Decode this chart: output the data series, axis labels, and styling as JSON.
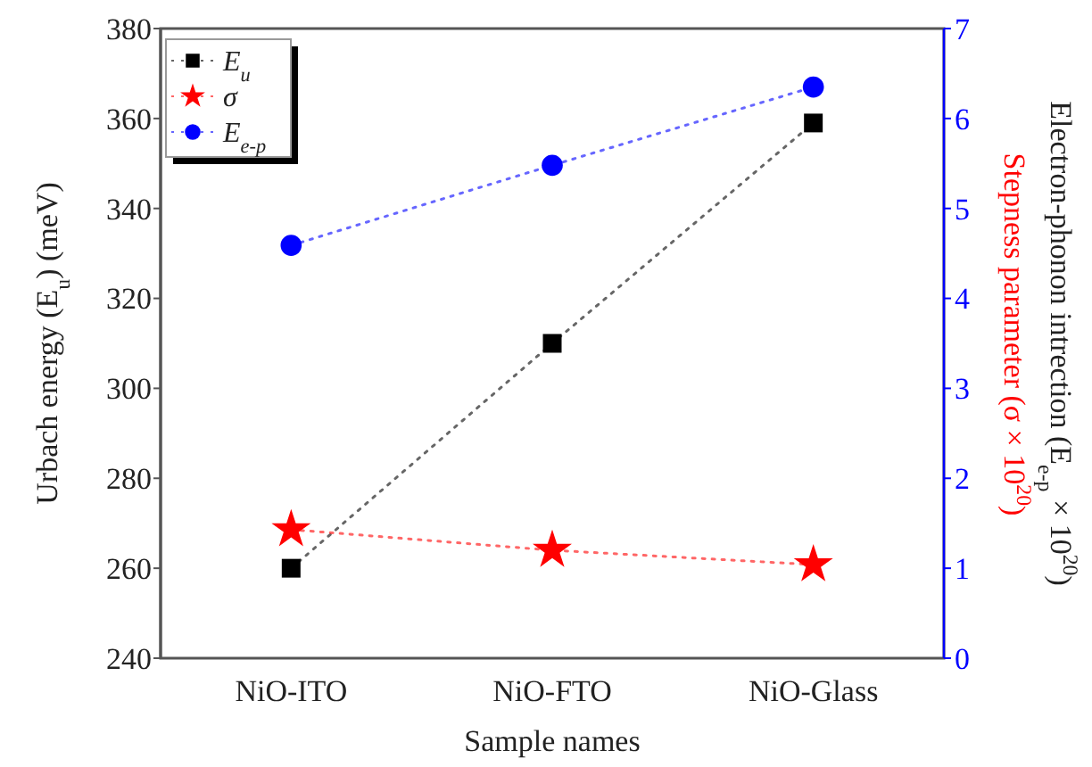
{
  "chart_data": {
    "type": "line",
    "xlabel": "Sample names",
    "ylabel": "Urbach energy (E$_{u}$) (meV)",
    "y2label": "Electron-phonon intrection (E$_{e-p}$ × 10$^{20}$)",
    "annotations": [
      "Stepness parameter (σ × 10$^{20}$)"
    ],
    "categories": [
      "NiO-ITO",
      "NiO-FTO",
      "NiO-Glass"
    ],
    "ylim": [
      240,
      380
    ],
    "yticks": [
      240,
      260,
      280,
      300,
      320,
      340,
      360,
      380
    ],
    "y2lim": [
      0,
      7
    ],
    "y2ticks": [
      0,
      1,
      2,
      3,
      4,
      5,
      6,
      7
    ],
    "line_style": "dotted",
    "legend": "top left",
    "grid": false,
    "series": [
      {
        "name": "E$_{u}$",
        "color": "#000000",
        "marker": "square",
        "values": [
          260,
          310,
          359
        ]
      },
      {
        "name": "σ",
        "color": "#ff0000",
        "marker": "star",
        "axis": "y2",
        "values": [
          1.43,
          1.2,
          1.04
        ]
      },
      {
        "name": "E$_{e-p}$",
        "color": "#0000ff",
        "marker": "circle",
        "axis": "y2",
        "values": [
          4.59,
          5.48,
          6.35
        ]
      }
    ]
  }
}
